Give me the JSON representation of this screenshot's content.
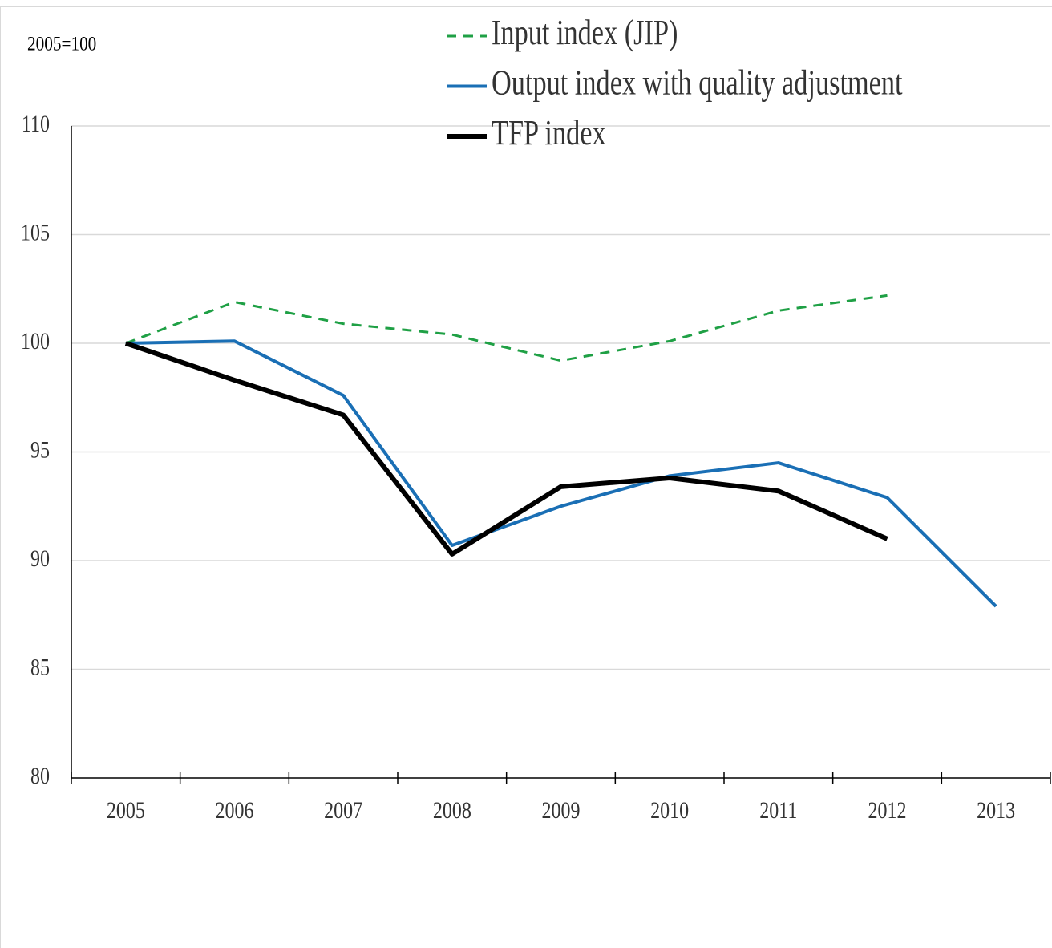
{
  "chart_data": {
    "type": "line",
    "y_axis_label": "2005=100",
    "categories": [
      "2005",
      "2006",
      "2007",
      "2008",
      "2009",
      "2010",
      "2011",
      "2012",
      "2013"
    ],
    "series": [
      {
        "name": "Input index (JIP)",
        "color": "#1fa045",
        "line_style": "dashed",
        "line_width": 3,
        "values": [
          100,
          101.9,
          100.9,
          100.4,
          99.2,
          100.1,
          101.5,
          102.2,
          null
        ]
      },
      {
        "name": "Output index with quality adjustment",
        "color": "#1a6fb5",
        "line_style": "solid",
        "line_width": 4,
        "values": [
          100,
          100.1,
          97.6,
          90.7,
          92.5,
          93.9,
          94.5,
          92.9,
          87.9
        ]
      },
      {
        "name": "TFP index",
        "color": "#000000",
        "line_style": "solid",
        "line_width": 6,
        "values": [
          100,
          98.3,
          96.7,
          90.3,
          93.4,
          93.8,
          93.2,
          91.0,
          null
        ]
      }
    ],
    "ylim": [
      80,
      110
    ],
    "yticks": [
      80,
      85,
      90,
      95,
      100,
      105,
      110
    ],
    "grid": true,
    "legend": "top"
  }
}
